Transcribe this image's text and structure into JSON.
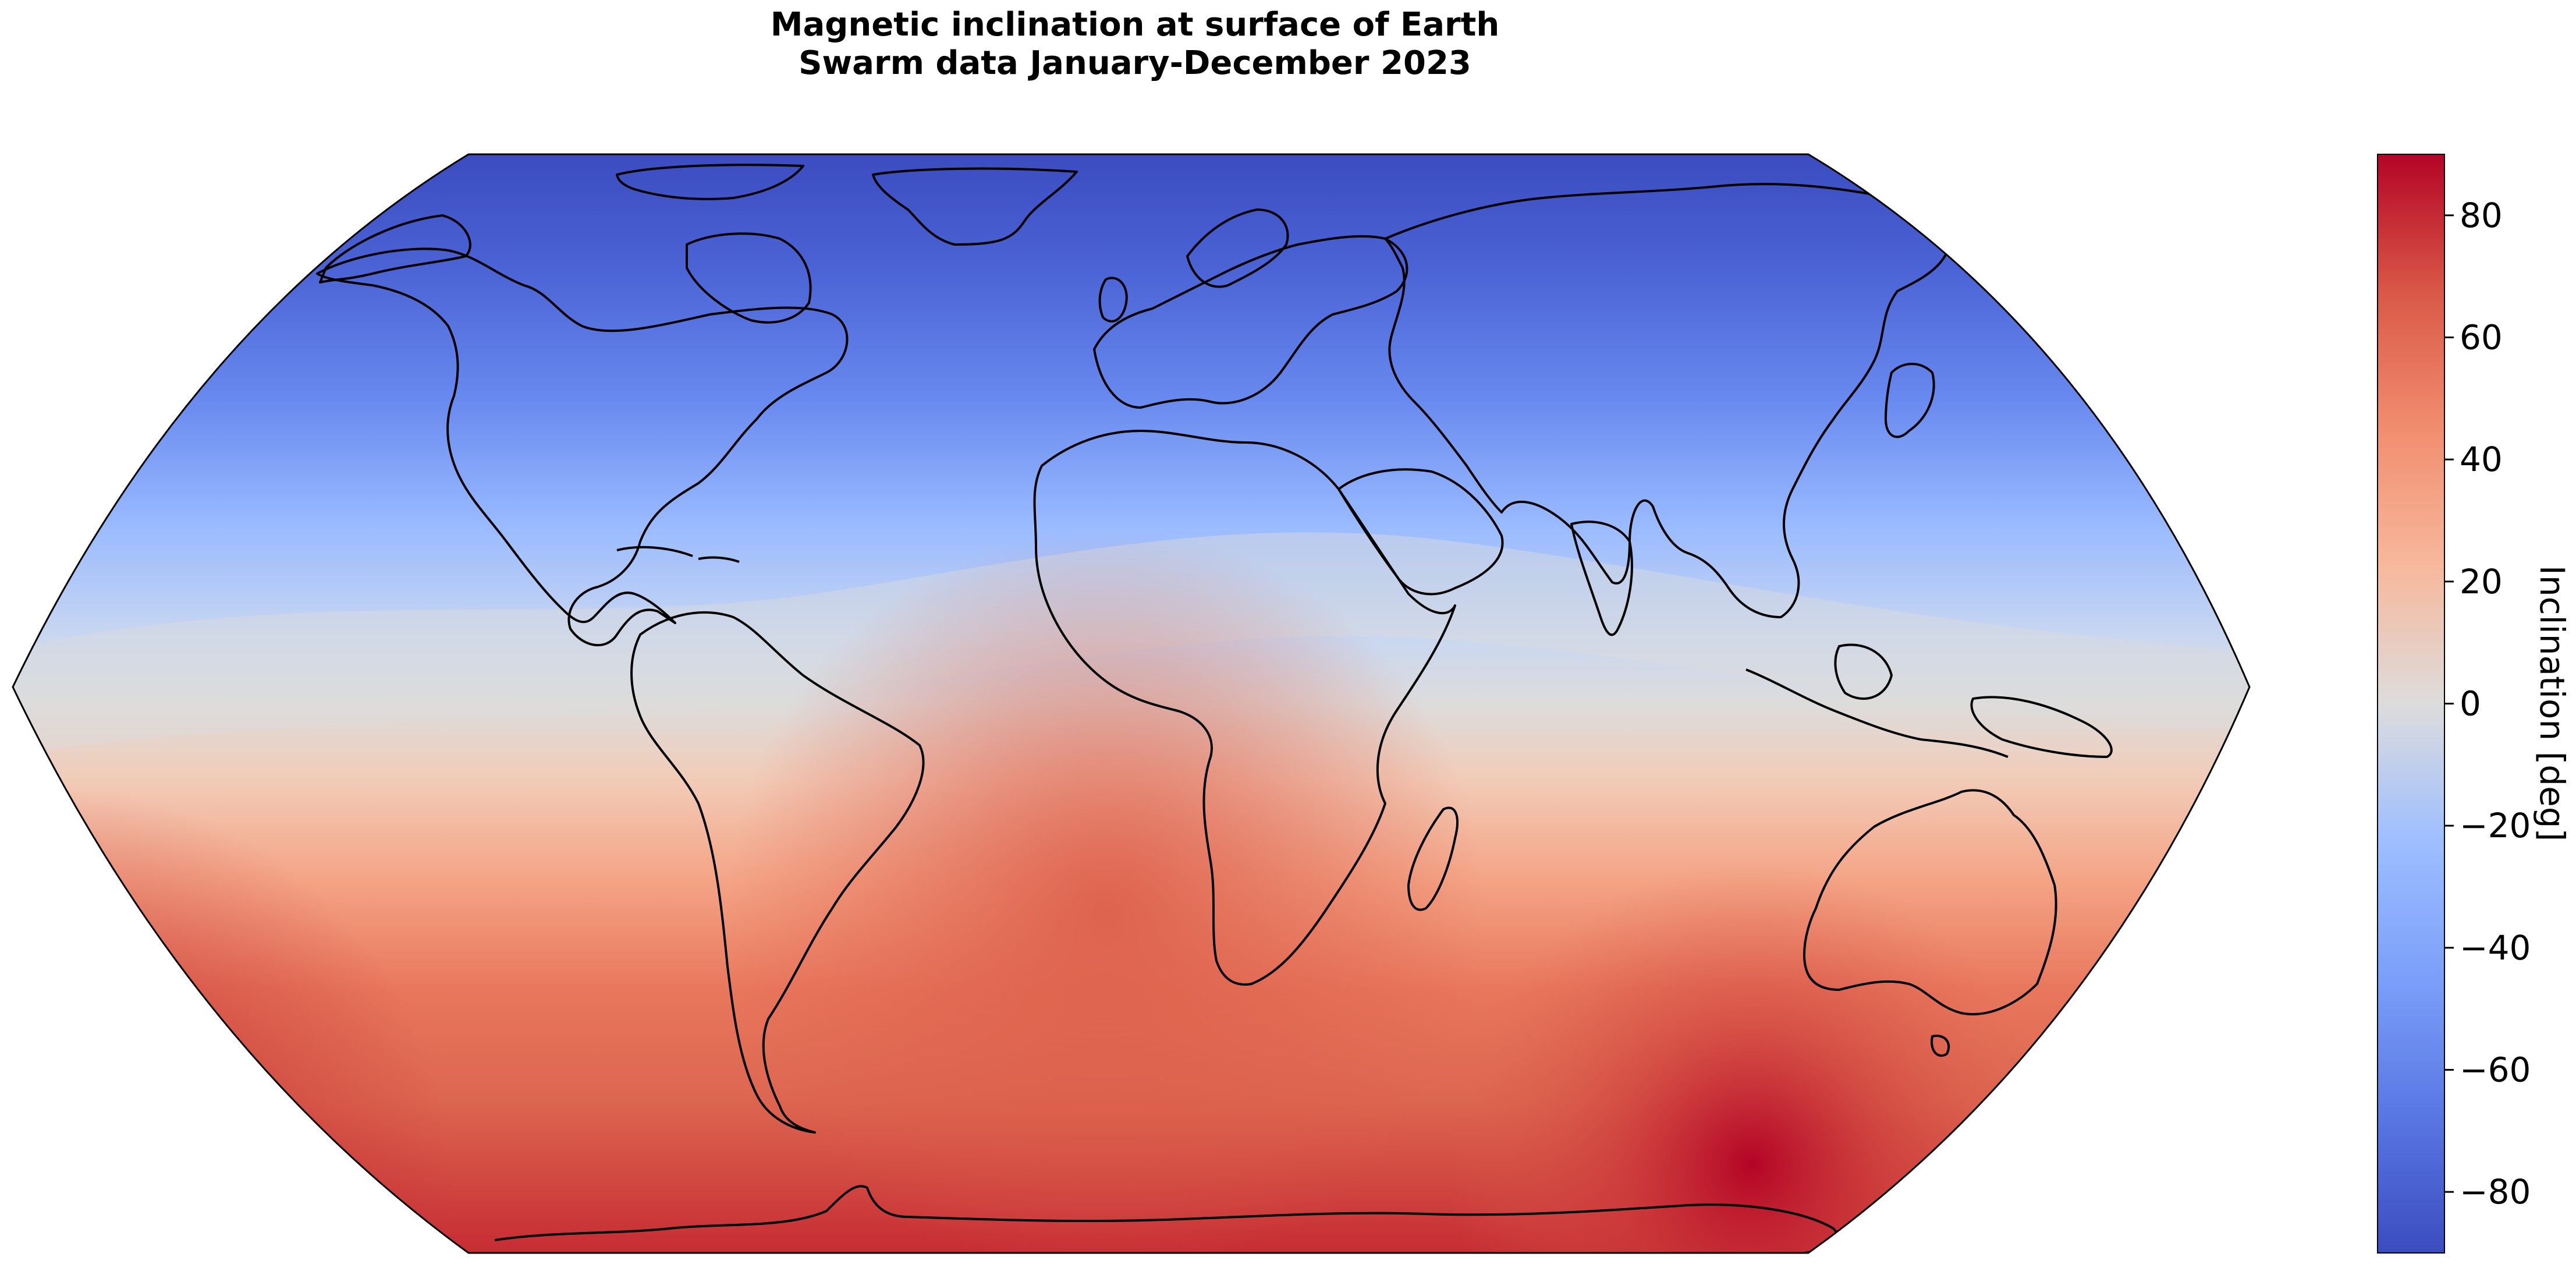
{
  "chart_data": {
    "type": "heatmap",
    "title_line1": "Magnetic inclination at surface of Earth",
    "title_line2": "Swarm data January-December 2023",
    "projection": "Robinson",
    "colormap": "coolwarm",
    "colorbar": {
      "label": "Inclination [deg]",
      "range": [
        -90,
        90
      ],
      "ticks": [
        80,
        60,
        40,
        20,
        0,
        -20,
        -40,
        -60,
        -80
      ],
      "tick_labels": [
        "80",
        "60",
        "40",
        "20",
        "0",
        "−20",
        "−40",
        "−60",
        "−80"
      ],
      "colors_low_to_high": [
        "#3b4cc0",
        "#6788ee",
        "#9abbff",
        "#c9d7f0",
        "#dddcdc",
        "#f2cbb7",
        "#f7a889",
        "#e26952",
        "#b40426"
      ]
    },
    "approximate_field": {
      "north_polar_inclination": -80,
      "magnetic_equator_inclination": 0,
      "south_polar_inclination": 80,
      "southern_max_location": "south of Australia, near Antarctic coast"
    },
    "basemap": "coastlines"
  }
}
